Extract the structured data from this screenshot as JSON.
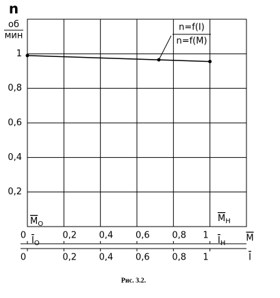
{
  "chart_data": {
    "type": "line",
    "y_label": "n",
    "y_unit_num": "об",
    "y_unit_den": "мин",
    "curve_label": [
      "n=f(I)",
      "n=f(M)"
    ],
    "series": [
      {
        "color": "#000000",
        "x": [
          0,
          0.72,
          1
        ],
        "values": [
          0.99,
          0.965,
          0.955
        ]
      }
    ],
    "xlim": [
      0,
      1.2
    ],
    "ylim": [
      0,
      1.2
    ],
    "yticks": [
      {
        "value": 0.2,
        "label": "0,2"
      },
      {
        "value": 0.4,
        "label": "0,4"
      },
      {
        "value": 0.6,
        "label": "0,6"
      },
      {
        "value": 0.8,
        "label": "0,8"
      },
      1
    ],
    "x_axes": [
      {
        "label": "M",
        "ticks": [
          0,
          {
            "value": 0.2,
            "label": "0,2"
          },
          {
            "value": 0.4,
            "label": "0,4"
          },
          {
            "value": 0.6,
            "label": "0,6"
          },
          {
            "value": 0.8,
            "label": "0,8"
          },
          1
        ]
      },
      {
        "label": "I",
        "ticks": [
          0,
          {
            "value": 0.2,
            "label": "0,2"
          },
          {
            "value": 0.4,
            "label": "0,4"
          },
          {
            "value": 0.6,
            "label": "0,6"
          },
          {
            "value": 0.8,
            "label": "0,8"
          },
          1
        ]
      }
    ],
    "annotations": [
      {
        "main": "M",
        "sub": "О"
      },
      {
        "main": "M",
        "sub": "Н"
      },
      {
        "main": "I",
        "sub": "О"
      },
      {
        "main": "I",
        "sub": "Н"
      }
    ],
    "caption": "Рис. 3.2.",
    "grid": true
  }
}
